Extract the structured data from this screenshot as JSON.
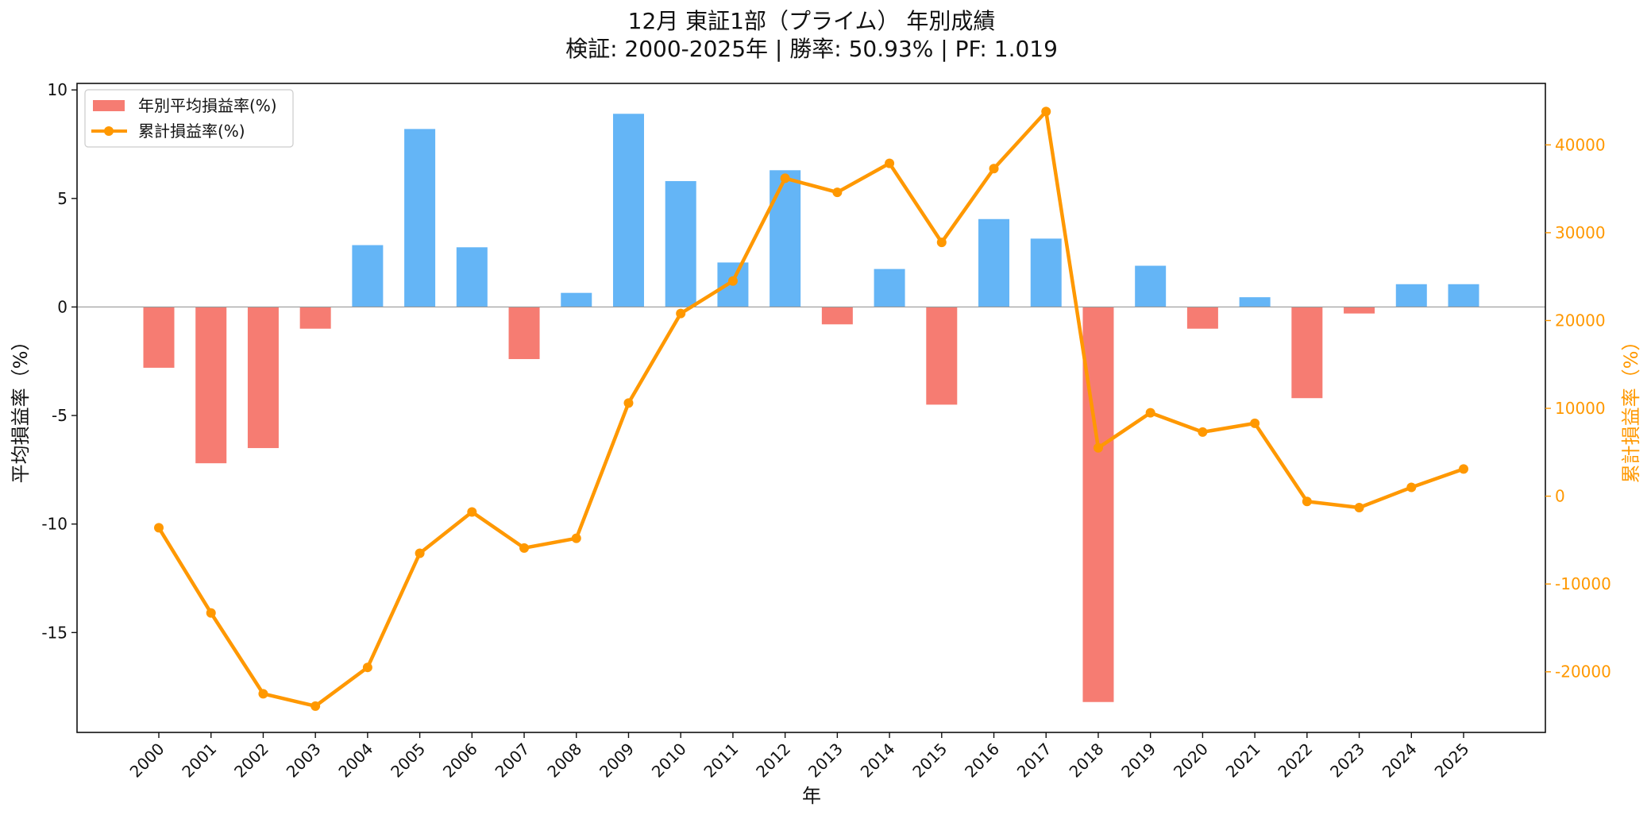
{
  "chart_data": {
    "type": "bar",
    "title": "12月 東証1部（プライム） 年別成績",
    "subtitle": "検証: 2000-2025年 | 勝率: 50.93% | PF: 1.019",
    "xlabel": "年",
    "ylabel": "平均損益率（%）",
    "y2label": "累計損益率（%）",
    "categories": [
      "2000",
      "2001",
      "2002",
      "2003",
      "2004",
      "2005",
      "2006",
      "2007",
      "2008",
      "2009",
      "2010",
      "2011",
      "2012",
      "2013",
      "2014",
      "2015",
      "2016",
      "2017",
      "2018",
      "2019",
      "2020",
      "2021",
      "2022",
      "2023",
      "2024",
      "2025"
    ],
    "ylim": [
      -19.6,
      10.3
    ],
    "y2lim": [
      -26900,
      47000
    ],
    "yticks": [
      10,
      5,
      0,
      -5,
      -10,
      -15
    ],
    "ytick_labels": [
      "10",
      "5",
      "0",
      "-5",
      "-10",
      "-15"
    ],
    "y2ticks": [
      40000,
      30000,
      20000,
      10000,
      0,
      -10000,
      -20000
    ],
    "y2tick_labels": [
      "40000",
      "30000",
      "20000",
      "10000",
      "0",
      "-10000",
      "-20000"
    ],
    "legend_position": "top-left",
    "grid": false,
    "series": [
      {
        "name": "年別平均損益率(%)",
        "type": "bar",
        "axis": "left",
        "positive_color": "#64b5f6",
        "negative_color": "#f67c72",
        "values": [
          -2.8,
          -7.2,
          -6.5,
          -1.0,
          2.85,
          8.2,
          2.75,
          -2.4,
          0.65,
          8.9,
          5.8,
          2.05,
          6.3,
          -0.8,
          1.75,
          -4.5,
          4.05,
          3.15,
          -18.2,
          1.9,
          -1.0,
          0.45,
          -4.2,
          -0.3,
          1.05,
          1.05
        ]
      },
      {
        "name": "累計損益率(%)",
        "type": "line",
        "axis": "right",
        "color": "#ff9800",
        "values": [
          -3600,
          -13300,
          -22500,
          -23900,
          -19500,
          -6500,
          -1800,
          -5900,
          -4800,
          10600,
          20800,
          24500,
          36200,
          34600,
          37900,
          28900,
          37300,
          43800,
          5500,
          9500,
          7300,
          8300,
          -600,
          -1300,
          1000,
          3100
        ]
      }
    ]
  }
}
